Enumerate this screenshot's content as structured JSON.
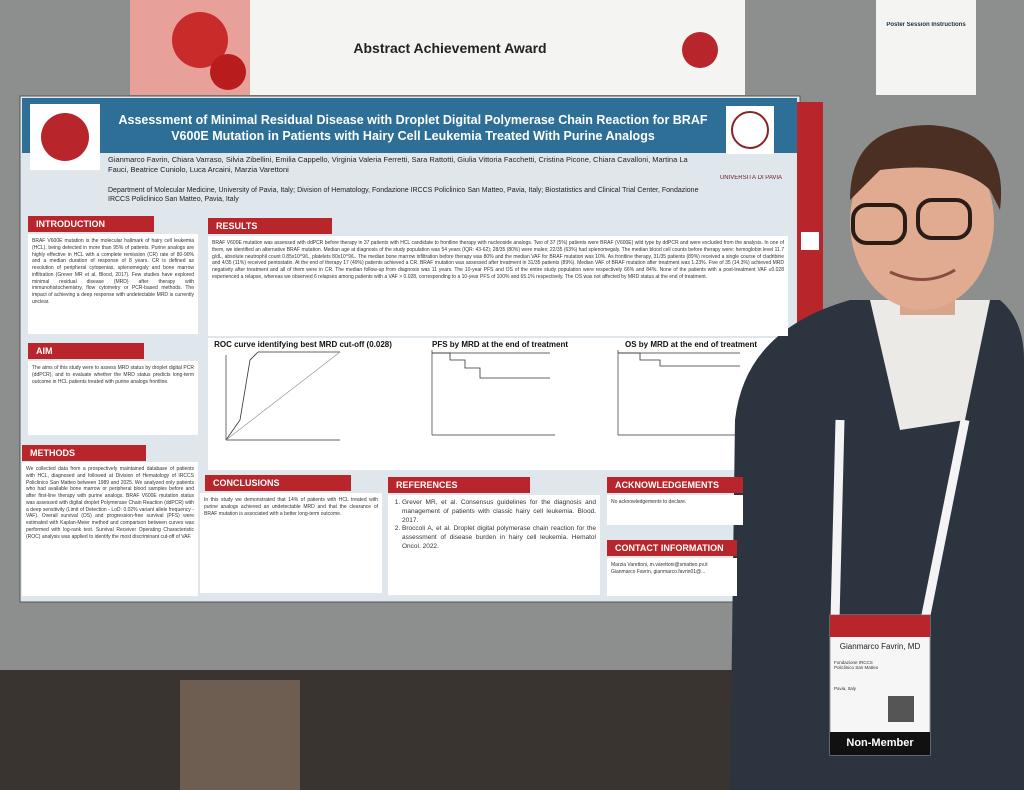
{
  "award_banner": {
    "text": "Abstract Achievement Award"
  },
  "instructions_card": {
    "title": "Poster Session Instructions"
  },
  "poster": {
    "title": "Assessment of Minimal Residual Disease with Droplet Digital Polymerase Chain Reaction for BRAF V600E Mutation in Patients with Hairy Cell Leukemia Treated With Purine Analogs",
    "authors": "Gianmarco Favrin, Chiara Varraso, Silvia Zibellini, Emilia Cappello, Virginia Valeria Ferretti, Sara Rattotti, Giulia Vittoria Facchetti, Cristina Picone, Chiara Cavalloni, Martina La Fauci, Beatrice Cuniolo, Luca Arcaini, Marzia Varettoni",
    "affiliations": "Department of Molecular Medicine, University of Pavia, Italy; Division of Hematology, Fondazione IRCCS Policlinico San Matteo, Pavia, Italy; Biostatistics and Clinical Trial Center, Fondazione IRCCS Policlinico San Matteo, Pavia, Italy",
    "university_logo": "UNIVERSITÀ DI PAVIA",
    "introduction": {
      "heading": "INTRODUCTION",
      "body": "BRAF V600E mutation is the molecular hallmark of hairy cell leukemia (HCL), being detected in more than 95% of patients. Purine analogs are highly effective in HCL with a complete remission (CR) rate of 80-90% and a median duration of response of 8 years. CR is defined as resolution of peripheral cytopenias, splenomegaly and bone marrow infiltration (Grever MR et al, Blood, 2017). Few studies have explored minimal residual disease (MRD) after therapy with immunohistochemistry, flow cytometry or PCR-based methods. The impact of achieving a deep response with undetectable MRD is currently unclear."
    },
    "aim": {
      "heading": "AIM",
      "body": "The aims of this study were to assess MRD status by droplet digital PCR (ddPCR), and to evaluate whether the MRD status predicts long-term outcome in HCL patients treated with purine analogs frontline."
    },
    "methods": {
      "heading": "METHODS",
      "body": "We collected data from a prospectively maintained database of patients with HCL, diagnosed and followed at Division of Hematology of IRCCS Policlinico San Matteo between 1989 and 2025. We analyzed only patients who had available bone marrow or peripheral blood samples before and after first-line therapy with purine analogs. BRAF V600E mutation status was assessed with digital droplet Polymerase Chain Reaction (ddPCR) with a deep sensitivity (Limit of Detection - LoD: 0.02% variant allele frequency - VAF). Overall survival (OS) and progression-free survival (PFS) were estimated with Kaplan-Meier method and comparison between curves was performed with log-rank test. Survival Receiver Operating Characteristic (ROC) analysis was applied to identify the most discriminant cut-off of VAF."
    },
    "results": {
      "heading": "RESULTS",
      "body": "BRAF V600E mutation was assessed with ddPCR before therapy in 37 patients with HCL candidate to frontline therapy with nucleoside analogs. Two of 37 (5%) patients were BRAF (V600E) wild type by ddPCR and were excluded from the analysis. In one of them, we identified an alternative BRAF mutation. Median age at diagnosis of the study population was 54 years (IQR: 43-62); 28/35 (80%) were males; 22/35 (63%) had splenomegaly. The median blood cell counts before therapy were: hemoglobin level 11.7 g/dL, absolute neutrophil count 0.85x10^9/L, platelets 80x10^9/L. The median bone marrow infiltration before therapy was 80% and the median VAF for BRAF mutation was 10%. As frontline therapy, 31/35 patients (89%) received a single course of cladribine and 4/35 (11%) received pentostatin. At the end of therapy 17 (49%) patients achieved a CR. BRAF mutation was assessed after treatment in 31/35 patients (89%). Median VAF of BRAF mutation after treatment was 1.23%. Five of 35 (14.3%) achieved MRD negativity after treatment and all of them were in CR. The median follow-up from diagnosis was 11 years. The 10-year PFS and OS of the entire study population were respectively 66% and 84%. None of the patients with a post-treatment VAF ≤0.028 experienced a relapse, whereas we observed 6 relapses among patients with a VAF > 0.028, corresponding to a 10-year PFS of 100% and 65.1% respectively. The OS was not affected by MRD status at the end of treatment."
    },
    "charts": [
      {
        "title": "ROC curve identifying best MRD cut-off (0.028)"
      },
      {
        "title": "PFS by MRD at the end of treatment"
      },
      {
        "title": "OS by MRD at the end of treatment"
      }
    ],
    "conclusions": {
      "heading": "CONCLUSIONS",
      "body": "In this study we demonstrated that 14% of patients with HCL treated with purine analogs achieved an undetectable MRD and that the clearance of BRAF mutation is associated with a better long-term outcome."
    },
    "references": {
      "heading": "REFERENCES",
      "items": [
        "Grever MR, et al. Consensus guidelines for the diagnosis and management of patients with classic hairy cell leukemia. Blood. 2017.",
        "Broccoli A, et al. Droplet digital polymerase chain reaction for the assessment of disease burden in hairy cell leukemia. Hematol Oncol. 2022."
      ]
    },
    "acknowledgements": {
      "heading": "ACKNOWLEDGEMENTS",
      "body": "No acknowledgements to declare."
    },
    "contact": {
      "heading": "CONTACT INFORMATION",
      "lines": [
        "Marzia Varettoni, m.varettoni@smatteo.pv.it",
        "Gianmarco Favrin, gianmarco.favrin01@..."
      ]
    }
  },
  "badge": {
    "name": "Gianmarco Favrin, MD",
    "affiliation": "Fondazione IRCCS Policlinico San Matteo",
    "location": "Pavia, Italy",
    "member_type": "Non-Member"
  }
}
